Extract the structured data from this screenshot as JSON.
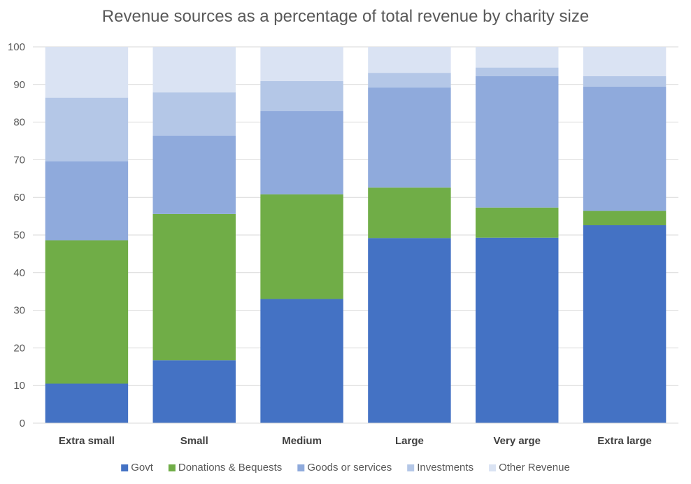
{
  "chart_data": {
    "type": "bar",
    "stacked": true,
    "title": "Revenue sources as a percentage of total revenue by charity size",
    "xlabel": "",
    "ylabel": "",
    "ylim": [
      0,
      100
    ],
    "yticks": [
      0,
      10,
      20,
      30,
      40,
      50,
      60,
      70,
      80,
      90,
      100
    ],
    "grid": true,
    "legend_position": "bottom",
    "categories": [
      "Extra small",
      "Small",
      "Medium",
      "Large",
      "Very arge",
      "Extra large"
    ],
    "series": [
      {
        "name": "Govt",
        "color": "#4472c4",
        "values": [
          10.5,
          16.7,
          33.0,
          49.2,
          49.3,
          52.6
        ]
      },
      {
        "name": "Donations & Bequests",
        "color": "#70ad47",
        "values": [
          38.1,
          38.9,
          27.8,
          13.4,
          8.0,
          3.8
        ]
      },
      {
        "name": "Goods or services",
        "color": "#8faadc",
        "values": [
          21.0,
          20.8,
          22.1,
          26.6,
          34.9,
          33.0
        ]
      },
      {
        "name": "Investments",
        "color": "#b4c7e7",
        "values": [
          16.9,
          11.5,
          8.0,
          3.9,
          2.3,
          2.8
        ]
      },
      {
        "name": "Other Revenue",
        "color": "#dae3f3",
        "values": [
          13.5,
          12.1,
          9.1,
          6.9,
          5.5,
          7.8
        ]
      }
    ]
  }
}
